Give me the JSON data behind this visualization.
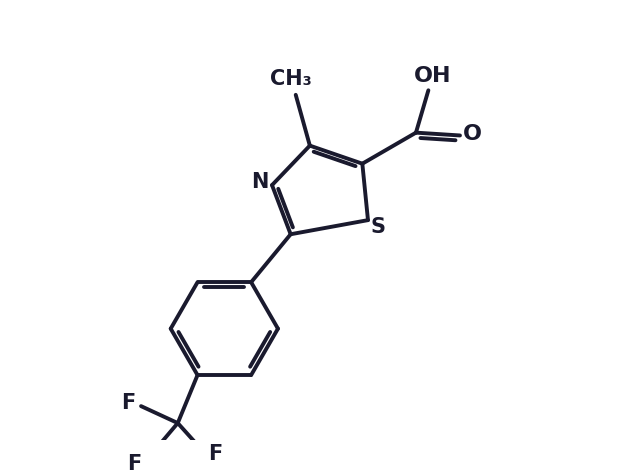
{
  "background_color": "#ffffff",
  "line_color": "#1a1a2e",
  "line_width": 2.8,
  "font_size": 15,
  "figure_width": 6.4,
  "figure_height": 4.7,
  "dpi": 100,
  "xlim": [
    0,
    10
  ],
  "ylim": [
    0,
    7.8
  ]
}
